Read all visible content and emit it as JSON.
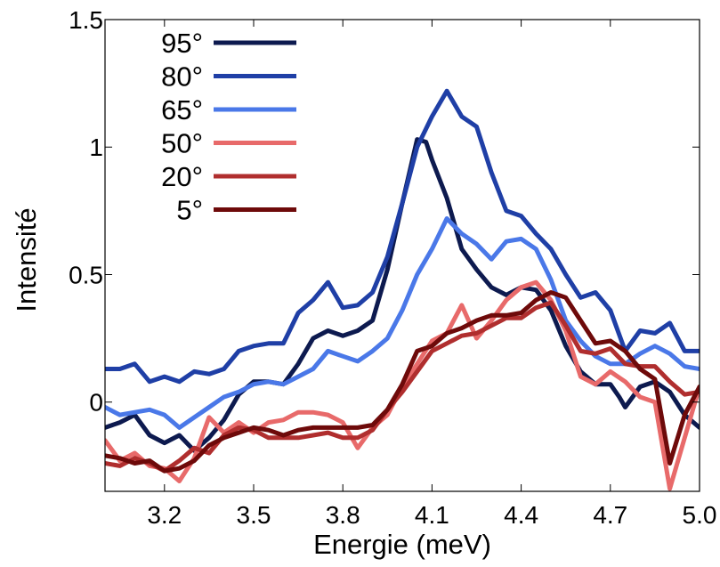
{
  "chart_data": {
    "type": "line",
    "title": "",
    "xlabel": "Energie (meV)",
    "ylabel": "Intensité",
    "xlim": [
      3.0,
      5.0
    ],
    "ylim": [
      -0.35,
      1.5
    ],
    "xticks": [
      3.2,
      3.5,
      3.8,
      4.1,
      4.4,
      4.7,
      5.0
    ],
    "xtick_labels": [
      "3.2",
      "3.5",
      "3.8",
      "4.1",
      "4.4",
      "4.7",
      "5.0"
    ],
    "yticks": [
      0,
      0.5,
      1,
      1.5
    ],
    "ytick_labels": [
      "0",
      "0.5",
      "1",
      "1.5"
    ],
    "grid": false,
    "legend_position": "top-left",
    "series": [
      {
        "name": "95°",
        "color": "#0d1a4f",
        "points": [
          [
            3.0,
            -0.1
          ],
          [
            3.05,
            -0.08
          ],
          [
            3.1,
            -0.05
          ],
          [
            3.15,
            -0.13
          ],
          [
            3.2,
            -0.16
          ],
          [
            3.25,
            -0.13
          ],
          [
            3.3,
            -0.19
          ],
          [
            3.35,
            -0.14
          ],
          [
            3.4,
            -0.07
          ],
          [
            3.45,
            0.03
          ],
          [
            3.5,
            0.08
          ],
          [
            3.55,
            0.08
          ],
          [
            3.6,
            0.07
          ],
          [
            3.65,
            0.15
          ],
          [
            3.7,
            0.25
          ],
          [
            3.75,
            0.28
          ],
          [
            3.8,
            0.26
          ],
          [
            3.85,
            0.28
          ],
          [
            3.9,
            0.32
          ],
          [
            3.95,
            0.52
          ],
          [
            4.0,
            0.78
          ],
          [
            4.05,
            1.03
          ],
          [
            4.08,
            1.02
          ],
          [
            4.1,
            0.95
          ],
          [
            4.15,
            0.8
          ],
          [
            4.2,
            0.6
          ],
          [
            4.25,
            0.52
          ],
          [
            4.3,
            0.45
          ],
          [
            4.35,
            0.42
          ],
          [
            4.4,
            0.45
          ],
          [
            4.45,
            0.44
          ],
          [
            4.5,
            0.36
          ],
          [
            4.55,
            0.22
          ],
          [
            4.6,
            0.12
          ],
          [
            4.65,
            0.07
          ],
          [
            4.7,
            0.07
          ],
          [
            4.73,
            0.02
          ],
          [
            4.75,
            -0.02
          ],
          [
            4.8,
            0.06
          ],
          [
            4.85,
            0.08
          ],
          [
            4.9,
            0.04
          ],
          [
            4.95,
            -0.05
          ],
          [
            5.0,
            -0.1
          ]
        ]
      },
      {
        "name": "80°",
        "color": "#1f3fa6",
        "points": [
          [
            3.0,
            0.13
          ],
          [
            3.05,
            0.13
          ],
          [
            3.1,
            0.15
          ],
          [
            3.15,
            0.08
          ],
          [
            3.2,
            0.1
          ],
          [
            3.25,
            0.08
          ],
          [
            3.3,
            0.12
          ],
          [
            3.35,
            0.11
          ],
          [
            3.4,
            0.13
          ],
          [
            3.45,
            0.2
          ],
          [
            3.5,
            0.22
          ],
          [
            3.55,
            0.23
          ],
          [
            3.6,
            0.23
          ],
          [
            3.65,
            0.35
          ],
          [
            3.7,
            0.4
          ],
          [
            3.75,
            0.47
          ],
          [
            3.8,
            0.37
          ],
          [
            3.85,
            0.38
          ],
          [
            3.9,
            0.43
          ],
          [
            3.95,
            0.57
          ],
          [
            4.0,
            0.78
          ],
          [
            4.05,
            1.0
          ],
          [
            4.1,
            1.12
          ],
          [
            4.15,
            1.22
          ],
          [
            4.2,
            1.12
          ],
          [
            4.25,
            1.08
          ],
          [
            4.3,
            0.9
          ],
          [
            4.35,
            0.75
          ],
          [
            4.4,
            0.73
          ],
          [
            4.45,
            0.66
          ],
          [
            4.5,
            0.6
          ],
          [
            4.55,
            0.5
          ],
          [
            4.6,
            0.41
          ],
          [
            4.65,
            0.43
          ],
          [
            4.7,
            0.36
          ],
          [
            4.75,
            0.2
          ],
          [
            4.8,
            0.28
          ],
          [
            4.85,
            0.27
          ],
          [
            4.9,
            0.31
          ],
          [
            4.95,
            0.2
          ],
          [
            5.0,
            0.2
          ]
        ]
      },
      {
        "name": "65°",
        "color": "#4a78e8",
        "points": [
          [
            3.0,
            -0.02
          ],
          [
            3.05,
            -0.05
          ],
          [
            3.1,
            -0.04
          ],
          [
            3.15,
            -0.03
          ],
          [
            3.2,
            -0.05
          ],
          [
            3.25,
            -0.1
          ],
          [
            3.3,
            -0.06
          ],
          [
            3.35,
            -0.02
          ],
          [
            3.4,
            0.02
          ],
          [
            3.45,
            0.04
          ],
          [
            3.5,
            0.07
          ],
          [
            3.55,
            0.08
          ],
          [
            3.6,
            0.07
          ],
          [
            3.65,
            0.1
          ],
          [
            3.7,
            0.13
          ],
          [
            3.75,
            0.2
          ],
          [
            3.8,
            0.18
          ],
          [
            3.85,
            0.16
          ],
          [
            3.9,
            0.2
          ],
          [
            3.95,
            0.25
          ],
          [
            4.0,
            0.36
          ],
          [
            4.05,
            0.5
          ],
          [
            4.1,
            0.6
          ],
          [
            4.15,
            0.72
          ],
          [
            4.2,
            0.66
          ],
          [
            4.25,
            0.62
          ],
          [
            4.3,
            0.56
          ],
          [
            4.35,
            0.63
          ],
          [
            4.4,
            0.64
          ],
          [
            4.45,
            0.6
          ],
          [
            4.5,
            0.48
          ],
          [
            4.55,
            0.32
          ],
          [
            4.6,
            0.24
          ],
          [
            4.65,
            0.18
          ],
          [
            4.7,
            0.15
          ],
          [
            4.75,
            0.15
          ],
          [
            4.8,
            0.19
          ],
          [
            4.85,
            0.22
          ],
          [
            4.9,
            0.19
          ],
          [
            4.95,
            0.14
          ],
          [
            5.0,
            0.13
          ]
        ]
      },
      {
        "name": "50°",
        "color": "#e86a6a",
        "points": [
          [
            3.0,
            -0.15
          ],
          [
            3.05,
            -0.23
          ],
          [
            3.1,
            -0.2
          ],
          [
            3.15,
            -0.25
          ],
          [
            3.2,
            -0.26
          ],
          [
            3.25,
            -0.31
          ],
          [
            3.3,
            -0.22
          ],
          [
            3.35,
            -0.06
          ],
          [
            3.4,
            -0.12
          ],
          [
            3.45,
            -0.08
          ],
          [
            3.5,
            -0.12
          ],
          [
            3.55,
            -0.08
          ],
          [
            3.6,
            -0.07
          ],
          [
            3.65,
            -0.04
          ],
          [
            3.7,
            -0.04
          ],
          [
            3.75,
            -0.05
          ],
          [
            3.8,
            -0.08
          ],
          [
            3.85,
            -0.18
          ],
          [
            3.9,
            -0.1
          ],
          [
            3.95,
            -0.05
          ],
          [
            4.0,
            0.06
          ],
          [
            4.05,
            0.15
          ],
          [
            4.1,
            0.24
          ],
          [
            4.15,
            0.27
          ],
          [
            4.2,
            0.38
          ],
          [
            4.25,
            0.25
          ],
          [
            4.3,
            0.32
          ],
          [
            4.35,
            0.4
          ],
          [
            4.4,
            0.45
          ],
          [
            4.45,
            0.47
          ],
          [
            4.5,
            0.4
          ],
          [
            4.55,
            0.28
          ],
          [
            4.6,
            0.1
          ],
          [
            4.65,
            0.07
          ],
          [
            4.7,
            0.12
          ],
          [
            4.75,
            0.08
          ],
          [
            4.8,
            0.02
          ],
          [
            4.85,
            0.0
          ],
          [
            4.9,
            -0.34
          ],
          [
            4.95,
            -0.14
          ],
          [
            5.0,
            0.06
          ]
        ]
      },
      {
        "name": "20°",
        "color": "#b02e2e",
        "points": [
          [
            3.0,
            -0.24
          ],
          [
            3.05,
            -0.25
          ],
          [
            3.1,
            -0.22
          ],
          [
            3.15,
            -0.24
          ],
          [
            3.2,
            -0.27
          ],
          [
            3.25,
            -0.23
          ],
          [
            3.3,
            -0.18
          ],
          [
            3.35,
            -0.2
          ],
          [
            3.4,
            -0.13
          ],
          [
            3.45,
            -0.1
          ],
          [
            3.5,
            -0.11
          ],
          [
            3.55,
            -0.14
          ],
          [
            3.6,
            -0.14
          ],
          [
            3.65,
            -0.14
          ],
          [
            3.7,
            -0.13
          ],
          [
            3.75,
            -0.12
          ],
          [
            3.8,
            -0.14
          ],
          [
            3.85,
            -0.14
          ],
          [
            3.9,
            -0.11
          ],
          [
            3.95,
            -0.03
          ],
          [
            4.0,
            0.04
          ],
          [
            4.05,
            0.12
          ],
          [
            4.1,
            0.2
          ],
          [
            4.15,
            0.23
          ],
          [
            4.2,
            0.26
          ],
          [
            4.25,
            0.27
          ],
          [
            4.3,
            0.3
          ],
          [
            4.35,
            0.33
          ],
          [
            4.4,
            0.33
          ],
          [
            4.45,
            0.37
          ],
          [
            4.5,
            0.39
          ],
          [
            4.55,
            0.3
          ],
          [
            4.6,
            0.2
          ],
          [
            4.65,
            0.19
          ],
          [
            4.7,
            0.21
          ],
          [
            4.75,
            0.15
          ],
          [
            4.8,
            0.14
          ],
          [
            4.85,
            0.14
          ],
          [
            4.9,
            0.08
          ],
          [
            4.95,
            0.03
          ],
          [
            5.0,
            0.04
          ]
        ]
      },
      {
        "name": "5°",
        "color": "#6e0a0a",
        "points": [
          [
            3.0,
            -0.21
          ],
          [
            3.05,
            -0.22
          ],
          [
            3.1,
            -0.24
          ],
          [
            3.15,
            -0.23
          ],
          [
            3.2,
            -0.27
          ],
          [
            3.25,
            -0.26
          ],
          [
            3.3,
            -0.23
          ],
          [
            3.35,
            -0.17
          ],
          [
            3.4,
            -0.14
          ],
          [
            3.45,
            -0.12
          ],
          [
            3.5,
            -0.1
          ],
          [
            3.55,
            -0.11
          ],
          [
            3.6,
            -0.13
          ],
          [
            3.65,
            -0.11
          ],
          [
            3.7,
            -0.1
          ],
          [
            3.75,
            -0.1
          ],
          [
            3.8,
            -0.1
          ],
          [
            3.85,
            -0.1
          ],
          [
            3.9,
            -0.09
          ],
          [
            3.95,
            -0.03
          ],
          [
            4.0,
            0.07
          ],
          [
            4.05,
            0.2
          ],
          [
            4.1,
            0.22
          ],
          [
            4.15,
            0.27
          ],
          [
            4.2,
            0.29
          ],
          [
            4.25,
            0.32
          ],
          [
            4.3,
            0.34
          ],
          [
            4.35,
            0.34
          ],
          [
            4.4,
            0.35
          ],
          [
            4.45,
            0.4
          ],
          [
            4.5,
            0.43
          ],
          [
            4.55,
            0.41
          ],
          [
            4.6,
            0.32
          ],
          [
            4.65,
            0.23
          ],
          [
            4.7,
            0.24
          ],
          [
            4.75,
            0.2
          ],
          [
            4.8,
            0.13
          ],
          [
            4.85,
            0.09
          ],
          [
            4.9,
            -0.24
          ],
          [
            4.95,
            -0.05
          ],
          [
            5.0,
            0.06
          ]
        ]
      }
    ]
  }
}
